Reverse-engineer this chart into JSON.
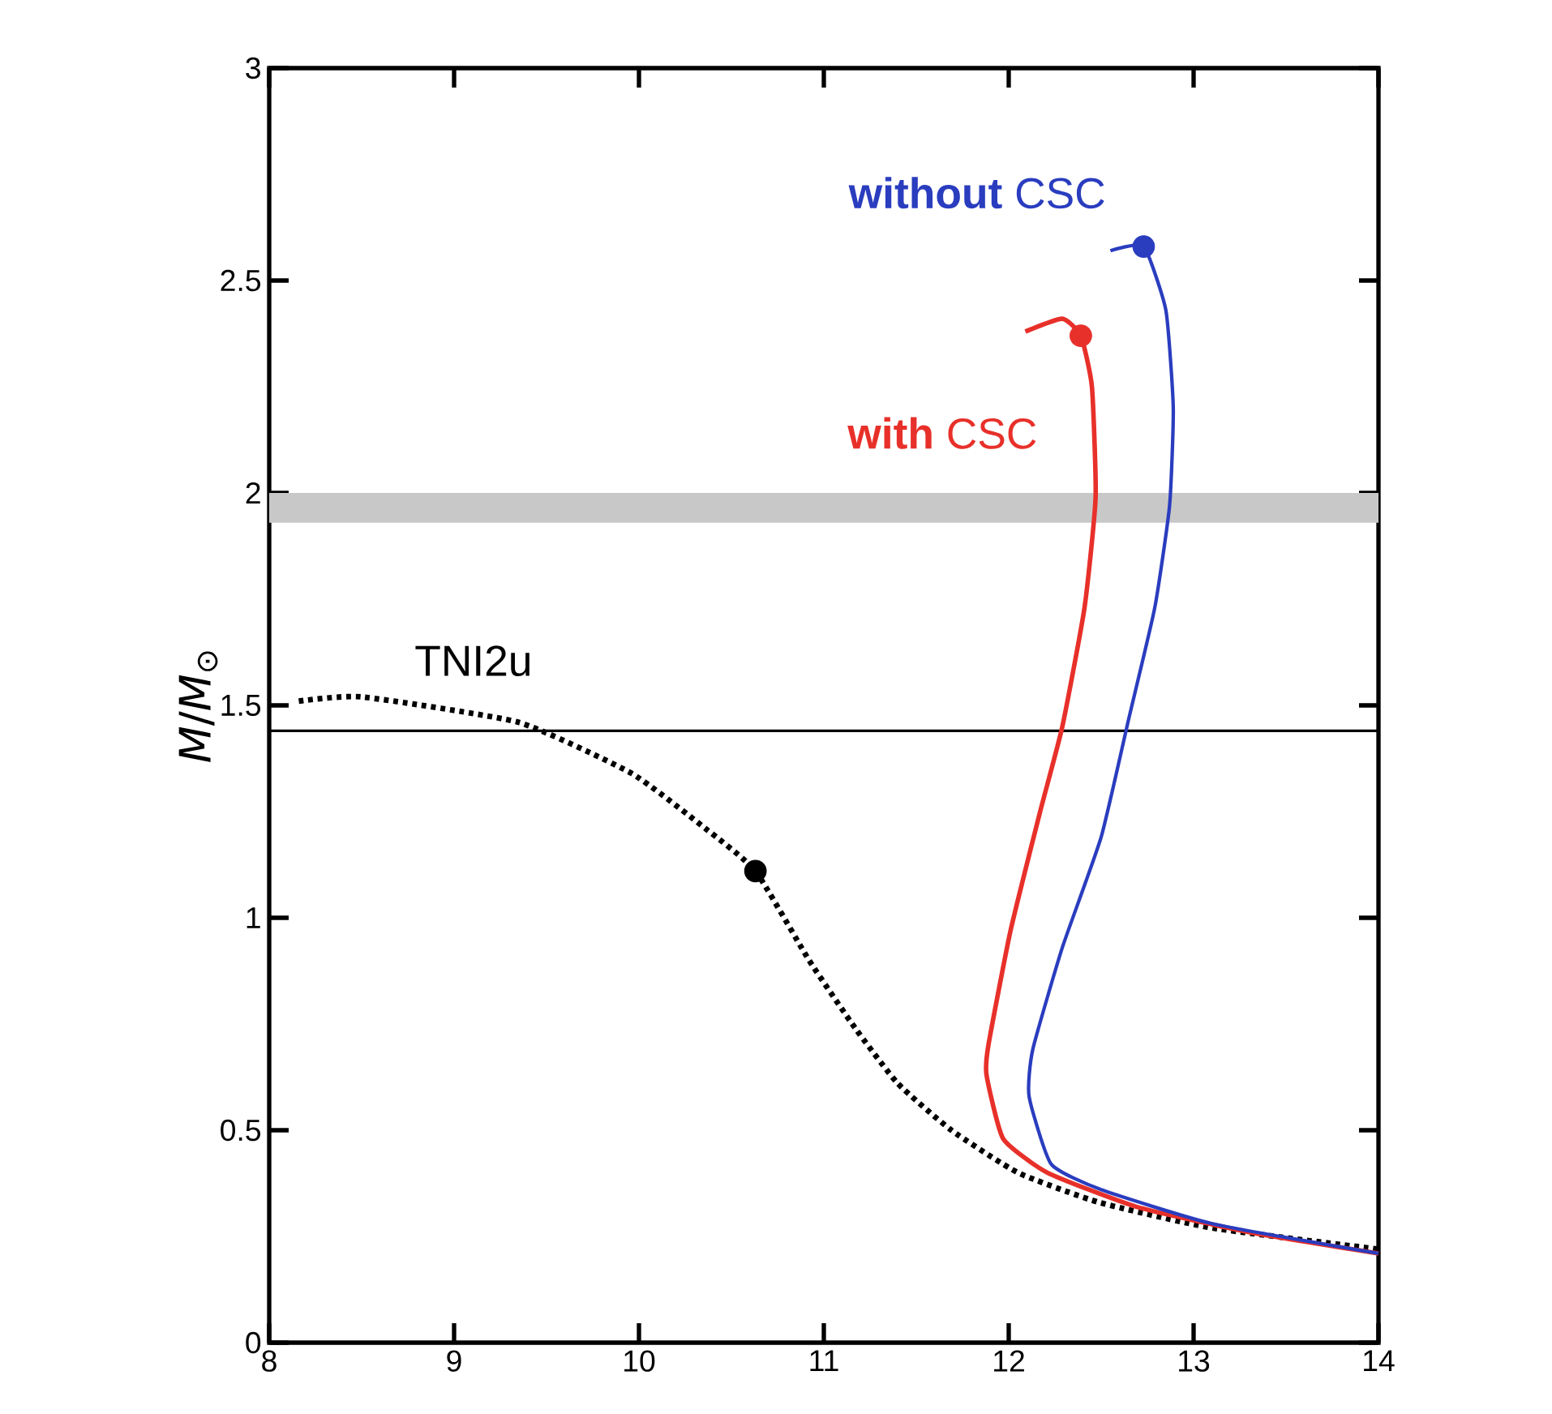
{
  "chart_data": {
    "type": "line",
    "ylabel": "*M*/*M*$_{⊙}$",
    "xlim": [
      8,
      14
    ],
    "ylim": [
      0,
      3
    ],
    "xticks": [
      8,
      9,
      10,
      11,
      12,
      13,
      14
    ],
    "yticks": [
      0,
      0.5,
      1,
      1.5,
      2,
      2.5,
      3
    ],
    "grid": false,
    "series": [
      {
        "name": "TNI2u",
        "color": "#000000",
        "line_style": "dotted",
        "x": [
          8.16,
          8.5,
          9.35,
          9.96,
          10.36,
          10.63,
          10.92,
          11.17,
          11.4,
          11.69,
          12.05,
          12.49,
          13.1,
          14.0
        ],
        "values": [
          1.51,
          1.52,
          1.46,
          1.34,
          1.21,
          1.11,
          0.9,
          0.74,
          0.61,
          0.5,
          0.4,
          0.33,
          0.27,
          0.22
        ]
      },
      {
        "name": "**with** CSC",
        "color": "#e8302a",
        "line_style": "solid",
        "x": [
          12.09,
          12.29,
          12.39,
          12.45,
          12.47,
          12.41,
          12.29,
          12.17,
          12.01,
          11.89,
          11.88,
          11.97,
          12.21,
          12.69,
          13.3,
          14.0
        ],
        "values": [
          2.38,
          2.41,
          2.37,
          2.25,
          1.99,
          1.73,
          1.45,
          1.25,
          0.97,
          0.7,
          0.63,
          0.48,
          0.4,
          0.32,
          0.26,
          0.21
        ]
      },
      {
        "name": "**without** CSC",
        "color": "#2a3dbf",
        "line_style": "solid",
        "x": [
          12.55,
          12.73,
          12.85,
          12.89,
          12.87,
          12.79,
          12.65,
          12.5,
          12.29,
          12.13,
          12.11,
          12.23,
          12.5,
          13.1,
          14.0
        ],
        "values": [
          2.57,
          2.58,
          2.43,
          2.2,
          1.97,
          1.73,
          1.47,
          1.19,
          0.93,
          0.69,
          0.58,
          0.42,
          0.36,
          0.28,
          0.21
        ]
      },
      {
        "type": "scatter",
        "marker": "circle",
        "color": "#000000",
        "x": [
          10.63
        ],
        "values": [
          1.11
        ]
      },
      {
        "type": "scatter",
        "marker": "circle",
        "color": "#e8302a",
        "x": [
          12.39
        ],
        "values": [
          2.37
        ]
      },
      {
        "type": "scatter",
        "marker": "circle",
        "color": "#2a3dbf",
        "x": [
          12.73
        ],
        "values": [
          2.58
        ]
      }
    ],
    "ref_lines": [
      {
        "axis": "y",
        "value": 1.44,
        "color": "#000000"
      }
    ],
    "bands": [
      {
        "axis": "y",
        "from": 1.93,
        "to": 2.0,
        "color": "#c8c8c8"
      }
    ]
  }
}
